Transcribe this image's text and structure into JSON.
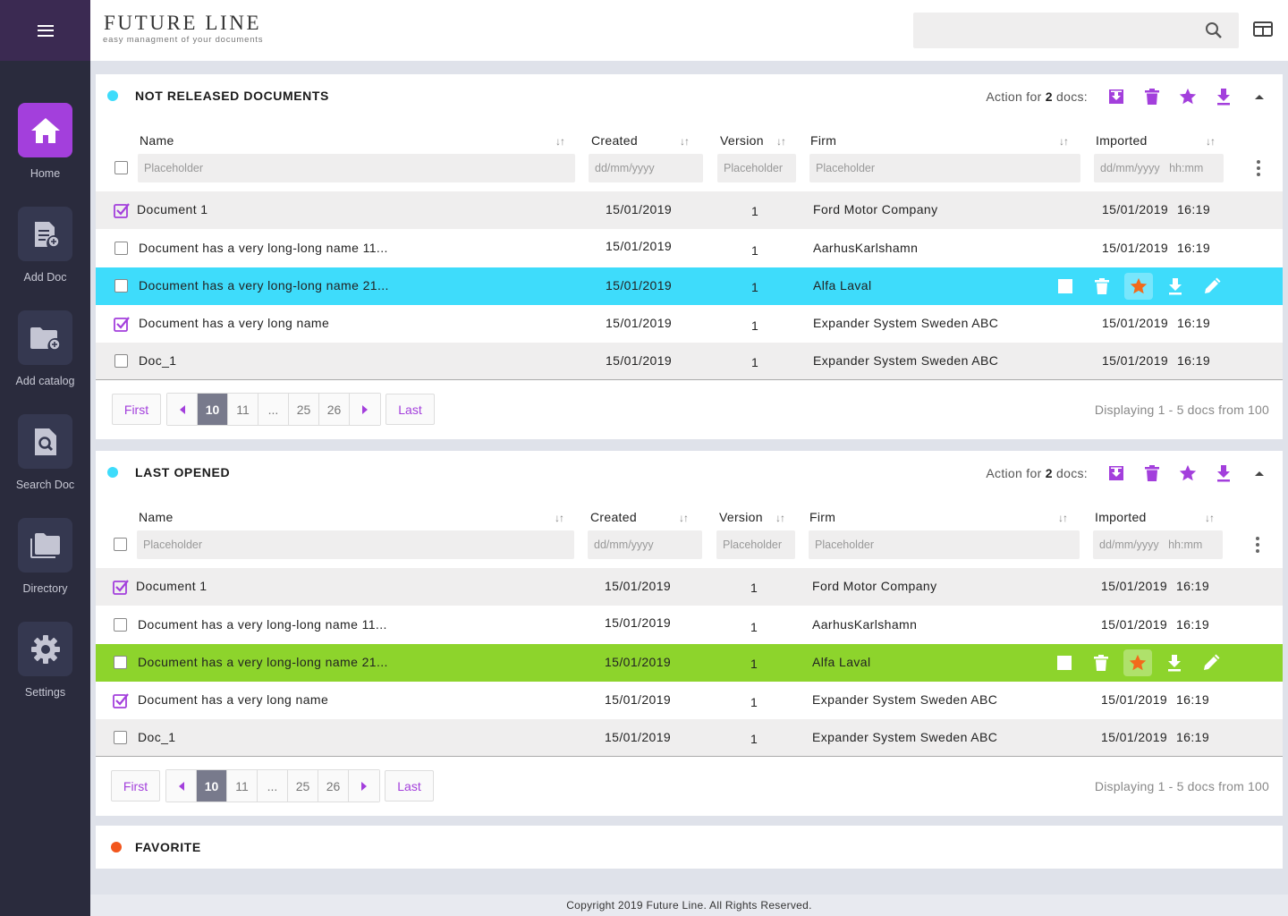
{
  "colors": {
    "accent": "#a33fdc",
    "sidebar": "#2a2b3d",
    "highlight_cyan": "#3edcfb",
    "highlight_green": "#8dd42c",
    "star_orange": "#f26a1b"
  },
  "sidebar": {
    "menu_icon": "hamburger-icon",
    "items": [
      {
        "label": "Home",
        "icon": "home-icon",
        "active": true
      },
      {
        "label": "Add Doc",
        "icon": "add-document-icon"
      },
      {
        "label": "Add catalog",
        "icon": "add-folder-icon"
      },
      {
        "label": "Search Doc",
        "icon": "search-document-icon"
      },
      {
        "label": "Directory",
        "icon": "folders-icon"
      },
      {
        "label": "Settings",
        "icon": "gear-icon"
      }
    ]
  },
  "header": {
    "title": "FUTURE LINE",
    "subtitle": "easy managment of your documents",
    "search_placeholder": ""
  },
  "columns": {
    "name": "Name",
    "created": "Created",
    "version": "Version",
    "firm": "Firm",
    "imported": "Imported",
    "sort_glyph": "↓↑"
  },
  "filters": {
    "name": "Placeholder",
    "created": "dd/mm/yyyy",
    "version": "Placeholder",
    "firm": "Placeholder",
    "imported": "dd/mm/yyyy   hh:mm"
  },
  "actions": {
    "label_prefix": "Action for",
    "count": "2",
    "label_suffix": "docs:"
  },
  "pagination": {
    "first": "First",
    "last": "Last",
    "pages": [
      "10",
      "11",
      "...",
      "25",
      "26"
    ],
    "current": "10",
    "info": "Displaying 1 - 5 docs from 100"
  },
  "panels": [
    {
      "title": "NOT RELEASED DOCUMENTS",
      "dot_color": "#3edcfb",
      "highlight": "#3edcfb",
      "rows": [
        {
          "checked": true,
          "name": "Document 1",
          "created": "15/01/2019",
          "version": "1",
          "firm": "Ford Motor Company",
          "imported_date": "15/01/2019",
          "imported_time": "16:19"
        },
        {
          "checked": false,
          "name": "Document has a very long-long name 11...",
          "created": "15/01/2019",
          "version": "1",
          "firm": "AarhusKarlshamn",
          "imported_date": "15/01/2019",
          "imported_time": "16:19"
        },
        {
          "checked": false,
          "name": "Document has a very long-long name 21...",
          "created": "15/01/2019",
          "version": "1",
          "firm": "Alfa Laval",
          "imported_date": "",
          "imported_time": "",
          "highlighted": true
        },
        {
          "checked": true,
          "name": "Document has a very long name",
          "created": "15/01/2019",
          "version": "1",
          "firm": "Expander System Sweden ABC",
          "imported_date": "15/01/2019",
          "imported_time": "16:19"
        },
        {
          "checked": false,
          "name": "Doc_1",
          "created": "15/01/2019",
          "version": "1",
          "firm": "Expander System Sweden ABC",
          "imported_date": "15/01/2019",
          "imported_time": "16:19"
        }
      ]
    },
    {
      "title": "LAST OPENED",
      "dot_color": "#3edcfb",
      "highlight": "#8dd42c",
      "rows": [
        {
          "checked": true,
          "name": "Document 1",
          "created": "15/01/2019",
          "version": "1",
          "firm": "Ford Motor Company",
          "imported_date": "15/01/2019",
          "imported_time": "16:19"
        },
        {
          "checked": false,
          "name": "Document has a very long-long name 11...",
          "created": "15/01/2019",
          "version": "1",
          "firm": "AarhusKarlshamn",
          "imported_date": "15/01/2019",
          "imported_time": "16:19"
        },
        {
          "checked": false,
          "name": "Document has a very long-long name 21...",
          "created": "15/01/2019",
          "version": "1",
          "firm": "Alfa Laval",
          "imported_date": "",
          "imported_time": "",
          "highlighted": true
        },
        {
          "checked": true,
          "name": "Document has a very long name",
          "created": "15/01/2019",
          "version": "1",
          "firm": "Expander System Sweden ABC",
          "imported_date": "15/01/2019",
          "imported_time": "16:19"
        },
        {
          "checked": false,
          "name": "Doc_1",
          "created": "15/01/2019",
          "version": "1",
          "firm": "Expander System Sweden ABC",
          "imported_date": "15/01/2019",
          "imported_time": "16:19"
        }
      ]
    },
    {
      "title": "FAVORITE",
      "dot_color": "#f2561d"
    }
  ],
  "footer": {
    "copyright": "Copyright 2019 Future Line. All Rights Reserved."
  }
}
